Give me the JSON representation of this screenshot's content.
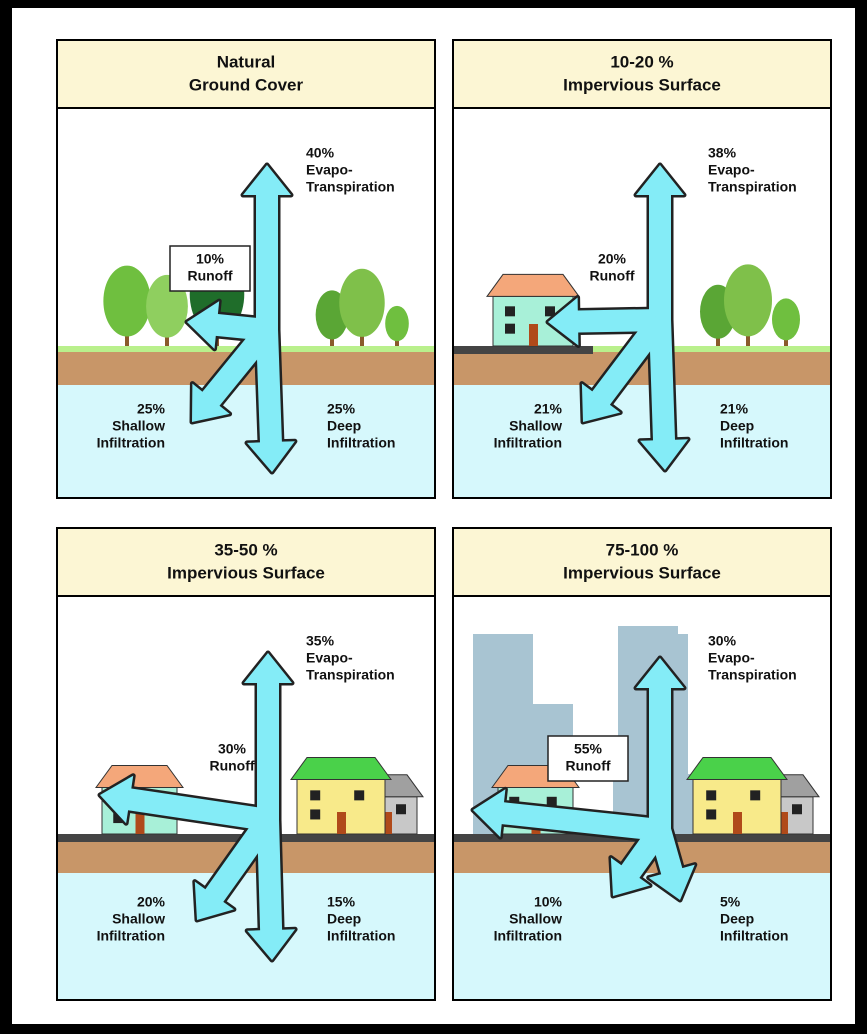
{
  "panels": [
    {
      "title": [
        "Natural",
        "Ground Cover"
      ],
      "evapotranspiration": {
        "percent": "40%",
        "label": [
          "Evapo-",
          "Transpiration"
        ]
      },
      "runoff": {
        "percent": "10%",
        "label": [
          "Runoff"
        ]
      },
      "shallow_infiltration": {
        "percent": "25%",
        "label": [
          "Shallow",
          "Infiltration"
        ]
      },
      "deep_infiltration": {
        "percent": "25%",
        "label": [
          "Deep",
          "Infiltration"
        ]
      }
    },
    {
      "title": [
        "10-20 %",
        "Impervious Surface"
      ],
      "evapotranspiration": {
        "percent": "38%",
        "label": [
          "Evapo-",
          "Transpiration"
        ]
      },
      "runoff": {
        "percent": "20%",
        "label": [
          "Runoff"
        ]
      },
      "shallow_infiltration": {
        "percent": "21%",
        "label": [
          "Shallow",
          "Infiltration"
        ]
      },
      "deep_infiltration": {
        "percent": "21%",
        "label": [
          "Deep",
          "Infiltration"
        ]
      }
    },
    {
      "title": [
        "35-50 %",
        "Impervious Surface"
      ],
      "evapotranspiration": {
        "percent": "35%",
        "label": [
          "Evapo-",
          "Transpiration"
        ]
      },
      "runoff": {
        "percent": "30%",
        "label": [
          "Runoff"
        ]
      },
      "shallow_infiltration": {
        "percent": "20%",
        "label": [
          "Shallow",
          "Infiltration"
        ]
      },
      "deep_infiltration": {
        "percent": "15%",
        "label": [
          "Deep",
          "Infiltration"
        ]
      }
    },
    {
      "title": [
        "75-100 %",
        "Impervious Surface"
      ],
      "evapotranspiration": {
        "percent": "30%",
        "label": [
          "Evapo-",
          "Transpiration"
        ]
      },
      "runoff": {
        "percent": "55%",
        "label": [
          "Runoff"
        ]
      },
      "shallow_infiltration": {
        "percent": "10%",
        "label": [
          "Shallow",
          "Infiltration"
        ]
      },
      "deep_infiltration": {
        "percent": "5%",
        "label": [
          "Deep",
          "Infiltration"
        ]
      }
    }
  ]
}
